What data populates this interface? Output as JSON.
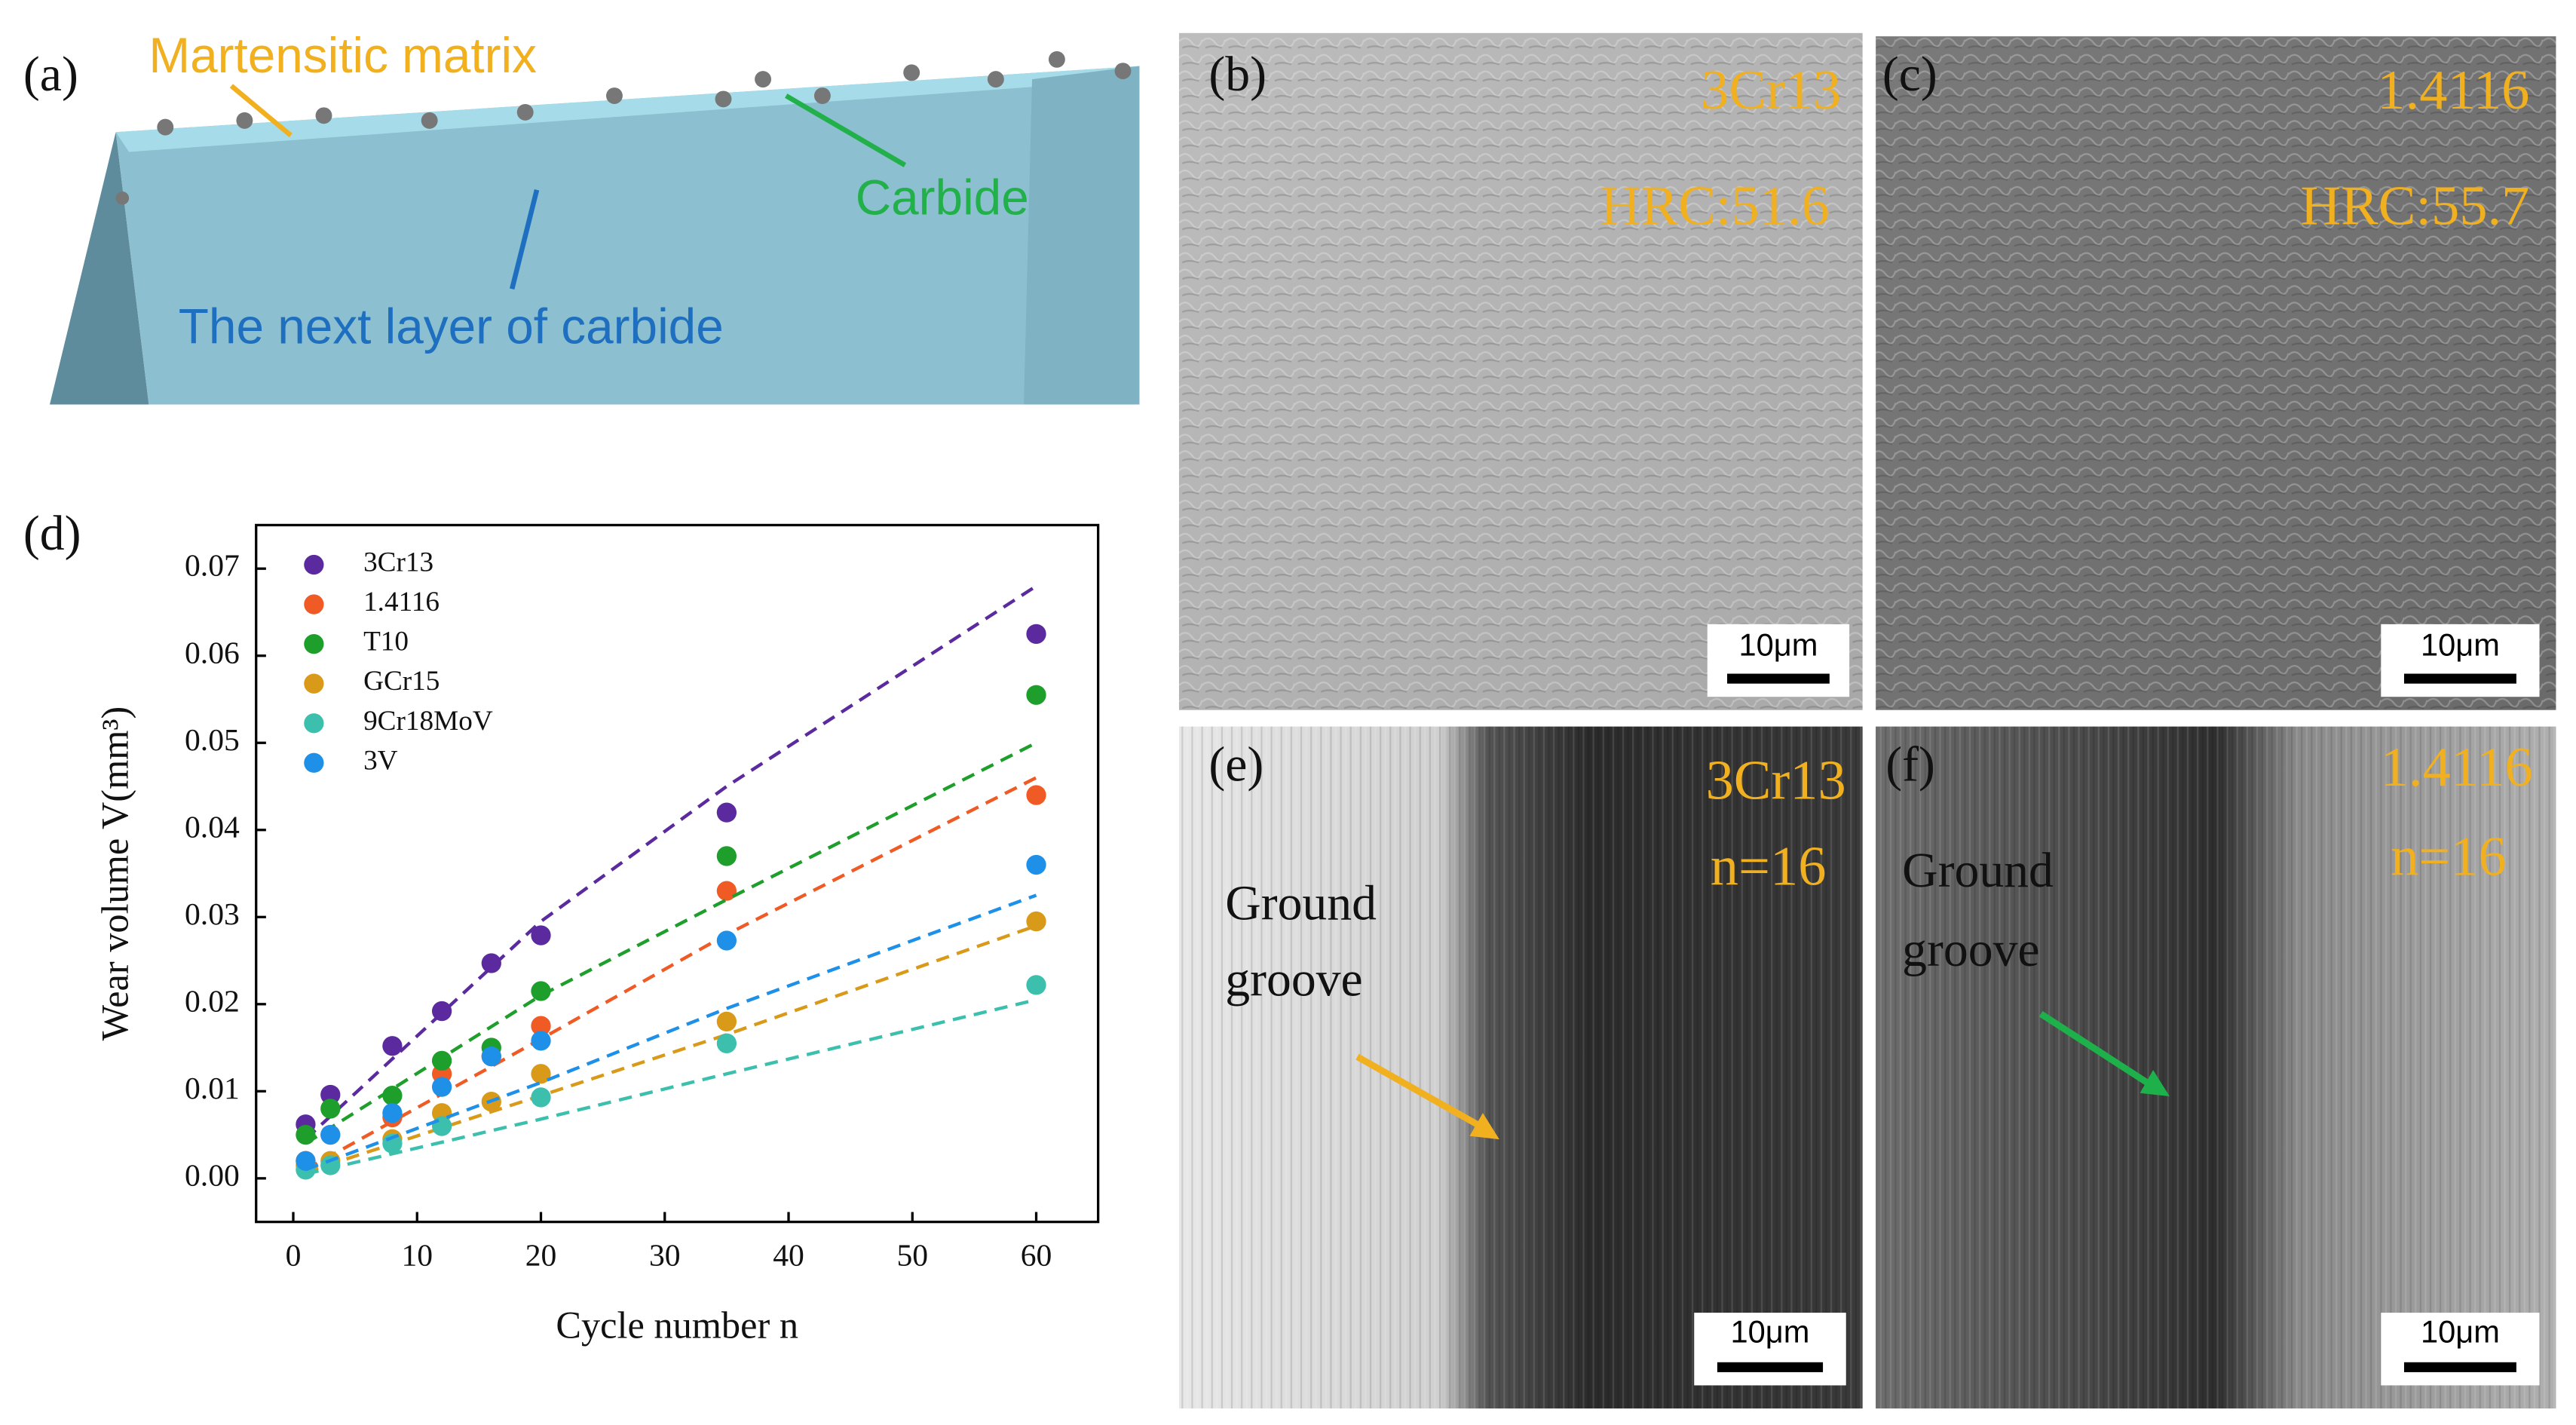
{
  "panels": {
    "a": {
      "label": "(a)",
      "matrix": "Martensitic matrix",
      "carbide": "Carbide",
      "next_layer": "The next layer of carbide"
    },
    "b": {
      "label": "(b)",
      "material": "3Cr13",
      "hardness": "HRC:51.6",
      "scale": "10μm"
    },
    "c": {
      "label": "(c)",
      "material": "1.4116",
      "hardness": "HRC:55.7",
      "scale": "10μm"
    },
    "e": {
      "label": "(e)",
      "material": "3Cr13",
      "cycles": "n=16",
      "groove_1": "Ground",
      "groove_2": "groove",
      "scale": "10μm"
    },
    "f": {
      "label": "(f)",
      "material": "1.4116",
      "cycles": "n=16",
      "groove_1": "Ground",
      "groove_2": "groove",
      "scale": "10μm"
    }
  },
  "chart_data": {
    "type": "scatter",
    "panel_label": "(d)",
    "x_label": "Cycle number n",
    "y_label": "Wear volume V(mm³)",
    "xlim": [
      -3,
      65
    ],
    "ylim": [
      -0.005,
      0.075
    ],
    "xticks": [
      0,
      10,
      20,
      30,
      40,
      50,
      60
    ],
    "yticks": [
      {
        "value": 0,
        "label": "0.00"
      },
      0.01,
      0.02,
      0.03,
      0.04,
      0.05,
      0.06,
      0.07
    ],
    "legend": "top-left",
    "x": [
      1,
      3,
      8,
      12,
      16,
      20,
      35,
      60
    ],
    "fit_x": [
      1,
      20,
      35,
      60
    ],
    "series": [
      {
        "name": "3Cr13",
        "color": "#5b2a9e",
        "values": [
          0.0062,
          0.0096,
          0.0152,
          0.0192,
          0.0247,
          0.0279,
          0.042,
          0.0625
        ],
        "fit": [
          0.0045,
          0.0295,
          0.045,
          0.068
        ]
      },
      {
        "name": "1.4116",
        "color": "#f05a24",
        "values": [
          0.002,
          0.005,
          0.007,
          0.012,
          0.014,
          0.0175,
          0.033,
          0.044
        ],
        "fit": [
          0.001,
          0.016,
          0.028,
          0.046
        ]
      },
      {
        "name": "T10",
        "color": "#1e9e2a",
        "values": [
          0.005,
          0.008,
          0.0095,
          0.0135,
          0.015,
          0.0215,
          0.037,
          0.0555
        ],
        "fit": [
          0.004,
          0.021,
          0.032,
          0.05
        ]
      },
      {
        "name": "GCr15",
        "color": "#d99a1a",
        "values": [
          0.0015,
          0.002,
          0.0045,
          0.0075,
          0.0088,
          0.012,
          0.018,
          0.0295
        ],
        "fit": [
          0.0007,
          0.0095,
          0.0165,
          0.029
        ]
      },
      {
        "name": "9Cr18MoV",
        "color": "#3dbfae",
        "values": [
          0.001,
          0.0015,
          0.004,
          0.006,
          null,
          0.0093,
          0.0155,
          0.0222
        ],
        "fit": [
          0.0005,
          0.0068,
          0.012,
          0.0205
        ]
      },
      {
        "name": "3V",
        "color": "#1e90e8",
        "values": [
          0.002,
          0.005,
          0.0075,
          0.0105,
          0.014,
          0.0158,
          0.0273,
          0.036
        ],
        "fit": [
          0.001,
          0.011,
          0.0195,
          0.0325
        ]
      }
    ]
  }
}
